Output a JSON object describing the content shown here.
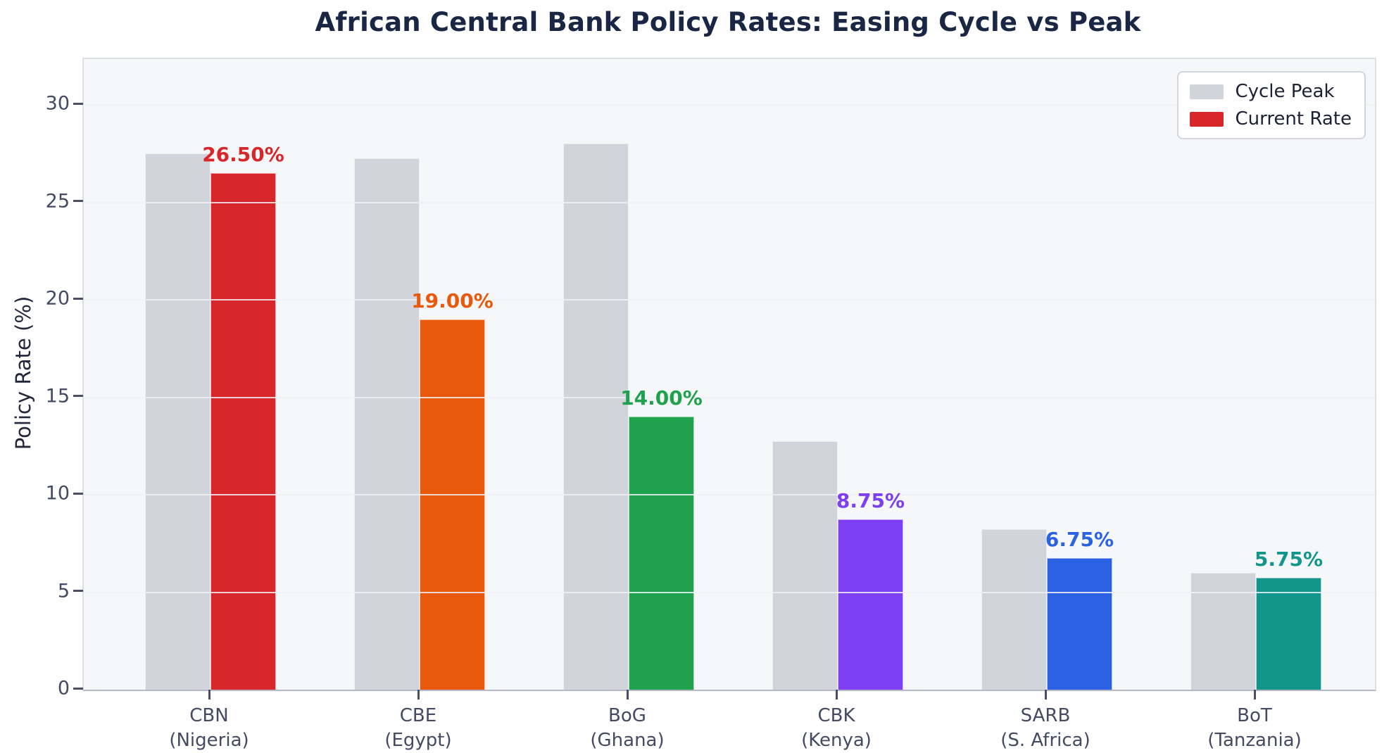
{
  "figure": {
    "title": "African Central Bank Policy Rates: Easing Cycle vs Peak"
  },
  "chart_data": {
    "type": "bar",
    "title": "African Central Bank Policy Rates: Easing Cycle vs Peak",
    "xlabel": "",
    "ylabel": "Policy Rate (%)",
    "ylim": [
      0,
      32.35
    ],
    "yticks": [
      0,
      5,
      10,
      15,
      20,
      25,
      30
    ],
    "grid": "horizontal, drawn over bars",
    "legend_position": "upper right",
    "plot_bg_color": "#f6f7f9",
    "title_color": "#1a2744",
    "tick_label_color": "#454a63",
    "categories": [
      {
        "line1": "CBN",
        "line2": "(Nigeria)"
      },
      {
        "line1": "CBE",
        "line2": "(Egypt)"
      },
      {
        "line1": "BoG",
        "line2": "(Ghana)"
      },
      {
        "line1": "CBK",
        "line2": "(Kenya)"
      },
      {
        "line1": "SARB",
        "line2": "(S. Africa)"
      },
      {
        "line1": "BoT",
        "line2": "(Tanzania)"
      }
    ],
    "series": [
      {
        "name": "Cycle Peak",
        "color": "#d1d4db",
        "values": [
          27.5,
          27.25,
          28.0,
          12.75,
          8.25,
          6.0
        ]
      },
      {
        "name": "Current Rate",
        "color": "#d8272b",
        "bar_colors": [
          "#d8272b",
          "#e8590c",
          "#1fa24d",
          "#7e3ff2",
          "#2a62e3",
          "#12968b"
        ],
        "values": [
          26.5,
          19.0,
          14.0,
          8.75,
          6.75,
          5.75
        ],
        "value_labels": [
          "26.50%",
          "19.00%",
          "14.00%",
          "8.75%",
          "6.75%",
          "5.75%"
        ]
      }
    ]
  }
}
